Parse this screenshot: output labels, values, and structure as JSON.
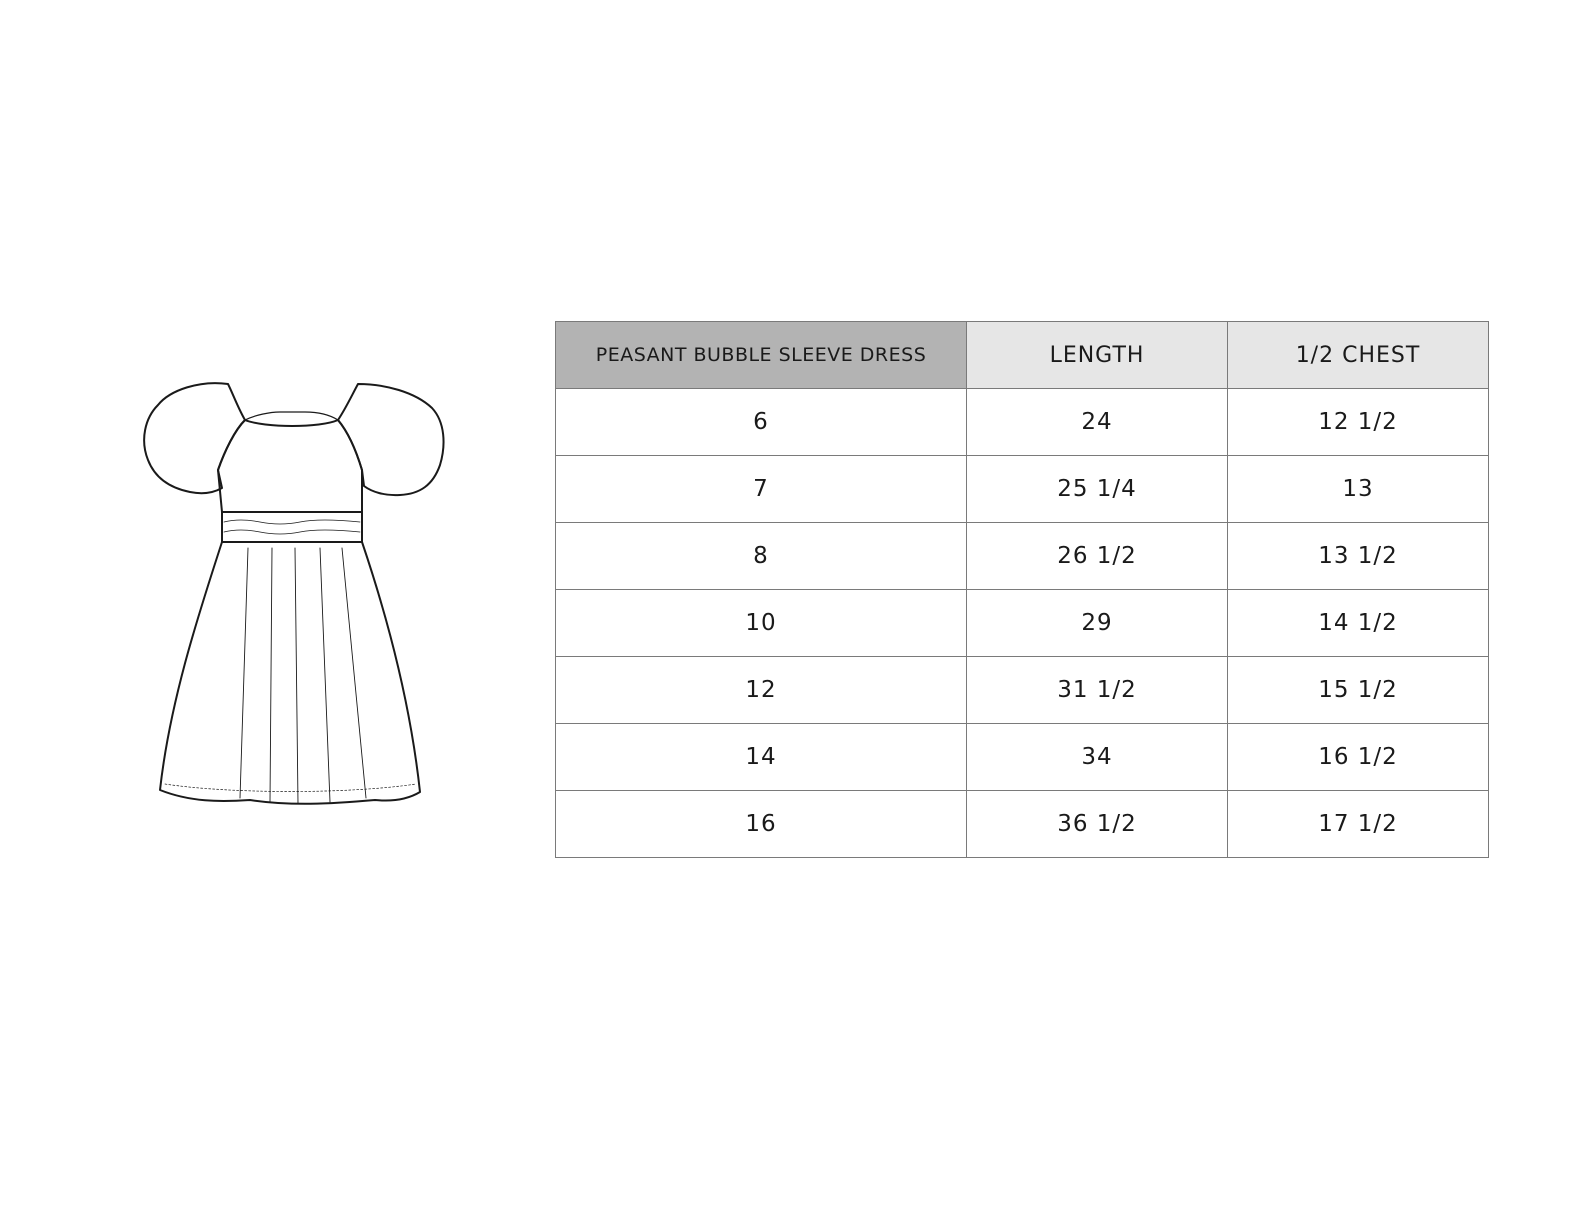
{
  "size_chart": {
    "headers": [
      "PEASANT BUBBLE SLEEVE DRESS",
      "LENGTH",
      "1/2 CHEST"
    ],
    "rows": [
      [
        "6",
        "24",
        "12 1/2"
      ],
      [
        "7",
        "25 1/4",
        "13"
      ],
      [
        "8",
        "26 1/2",
        "13 1/2"
      ],
      [
        "10",
        "29",
        "14 1/2"
      ],
      [
        "12",
        "31 1/2",
        "15 1/2"
      ],
      [
        "14",
        "34",
        "16 1/2"
      ],
      [
        "16",
        "36 1/2",
        "17 1/2"
      ]
    ],
    "header_colors": {
      "first": "#b3b3b3",
      "others": "#e6e6e6"
    }
  }
}
